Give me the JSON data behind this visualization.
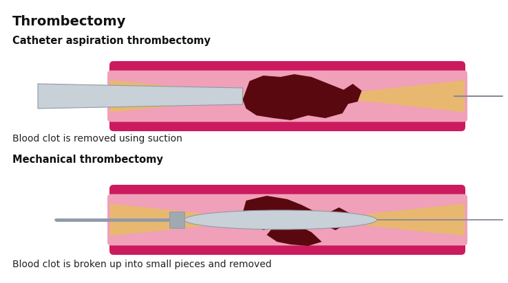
{
  "title": "Thrombectomy",
  "subtitle1": "Catheter aspiration thrombectomy",
  "caption1": "Blood clot is removed using suction",
  "subtitle2": "Mechanical thrombectomy",
  "caption2": "Blood clot is broken up into small pieces and removed",
  "bg_color": "#ffffff",
  "vessel_outer_color": "#cc1a5e",
  "vessel_inner_color": "#f0a0b8",
  "vessel_lumen_color": "#e8b870",
  "clot_color": "#5a0810",
  "catheter_color": "#c8d0d8",
  "catheter_dark": "#909aa8",
  "wire_color": "#888898",
  "title_fontsize": 14,
  "subtitle_fontsize": 10.5,
  "caption_fontsize": 10
}
